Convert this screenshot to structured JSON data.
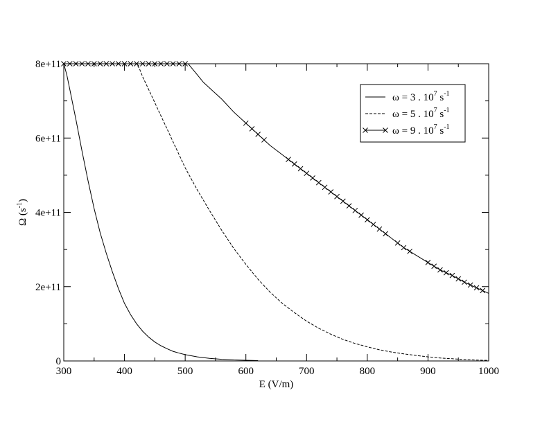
{
  "chart_data": {
    "type": "line",
    "title": "",
    "xlabel": "E (V/m)",
    "ylabel": {
      "main": "Ω (s",
      "sup": "-1",
      "end": ")"
    },
    "xlim": [
      300,
      1000
    ],
    "ylim": [
      0,
      800000000000
    ],
    "x_ticks": [
      300,
      400,
      500,
      600,
      700,
      800,
      900,
      1000
    ],
    "x_tick_labels": [
      "300",
      "400",
      "500",
      "600",
      "700",
      "800",
      "900",
      "1000"
    ],
    "y_ticks": [
      0,
      200000000000,
      400000000000,
      600000000000,
      800000000000
    ],
    "y_tick_labels": [
      "0",
      "2e+11",
      "4e+11",
      "6e+11",
      "8e+11"
    ],
    "grid": false,
    "legend_position": "top-right",
    "series": [
      {
        "legend": {
          "pre": "ω = 3 . 10",
          "sup1": "7",
          "mid": "  s",
          "sup2": "-1"
        },
        "line_style": "solid",
        "marker": "none",
        "x": [
          300,
          305,
          310,
          320,
          330,
          340,
          350,
          360,
          370,
          380,
          390,
          400,
          410,
          420,
          430,
          440,
          450,
          460,
          470,
          480,
          490,
          500,
          520,
          540,
          560,
          580,
          600,
          620
        ],
        "y": [
          800000000000,
          770000000000,
          730000000000,
          650000000000,
          565000000000,
          485000000000,
          410000000000,
          345000000000,
          290000000000,
          240000000000,
          195000000000,
          155000000000,
          125000000000,
          100000000000,
          80000000000,
          64000000000,
          51000000000,
          41000000000,
          33000000000,
          26000000000,
          21000000000,
          17000000000,
          11000000000,
          7000000000,
          4500000000,
          2800000000,
          1800000000,
          1000000000
        ]
      },
      {
        "legend": {
          "pre": "ω = 5 . 10",
          "sup1": "7",
          "mid": "  s",
          "sup2": "-1"
        },
        "line_style": "dashed",
        "marker": "none",
        "x": [
          300,
          420,
          425,
          430,
          440,
          450,
          460,
          470,
          480,
          490,
          500,
          520,
          540,
          560,
          580,
          600,
          620,
          640,
          660,
          680,
          700,
          720,
          740,
          760,
          780,
          800,
          820,
          840,
          860,
          880,
          900,
          920,
          940,
          960,
          980,
          1000
        ],
        "y": [
          800000000000,
          800000000000,
          785000000000,
          765000000000,
          730000000000,
          695000000000,
          660000000000,
          625000000000,
          590000000000,
          555000000000,
          520000000000,
          460000000000,
          405000000000,
          352000000000,
          303000000000,
          260000000000,
          220000000000,
          185000000000,
          155000000000,
          130000000000,
          107000000000,
          88000000000,
          72000000000,
          58000000000,
          47000000000,
          38000000000,
          30000000000,
          24000000000,
          19000000000,
          15000000000,
          11000000000,
          8000000000,
          6000000000,
          4000000000,
          2500000000,
          1500000000
        ]
      },
      {
        "legend": {
          "pre": "ω = 9 . 10",
          "sup1": "7",
          "mid": "  s",
          "sup2": "-1"
        },
        "line_style": "solid",
        "marker": "x",
        "x": [
          300,
          500,
          505,
          510,
          520,
          530,
          540,
          560,
          580,
          600,
          620,
          640,
          660,
          680,
          700,
          720,
          740,
          760,
          780,
          800,
          820,
          840,
          860,
          880,
          900,
          920,
          940,
          960,
          980,
          1000
        ],
        "y": [
          800000000000,
          800000000000,
          800000000000,
          790000000000,
          770000000000,
          750000000000,
          735000000000,
          705000000000,
          670000000000,
          640000000000,
          610000000000,
          580000000000,
          555000000000,
          530000000000,
          505000000000,
          480000000000,
          455000000000,
          430000000000,
          405000000000,
          380000000000,
          355000000000,
          330000000000,
          305000000000,
          285000000000,
          265000000000,
          245000000000,
          230000000000,
          212000000000,
          197000000000,
          182000000000
        ],
        "marker_x": [
          300,
          310,
          320,
          330,
          340,
          350,
          360,
          370,
          380,
          390,
          400,
          410,
          420,
          430,
          440,
          450,
          460,
          470,
          480,
          490,
          500,
          600,
          610,
          620,
          630,
          670,
          680,
          690,
          700,
          710,
          720,
          730,
          740,
          750,
          760,
          770,
          780,
          790,
          800,
          810,
          820,
          830,
          850,
          860,
          870,
          900,
          910,
          920,
          930,
          940,
          950,
          960,
          970,
          980,
          990
        ]
      }
    ]
  }
}
